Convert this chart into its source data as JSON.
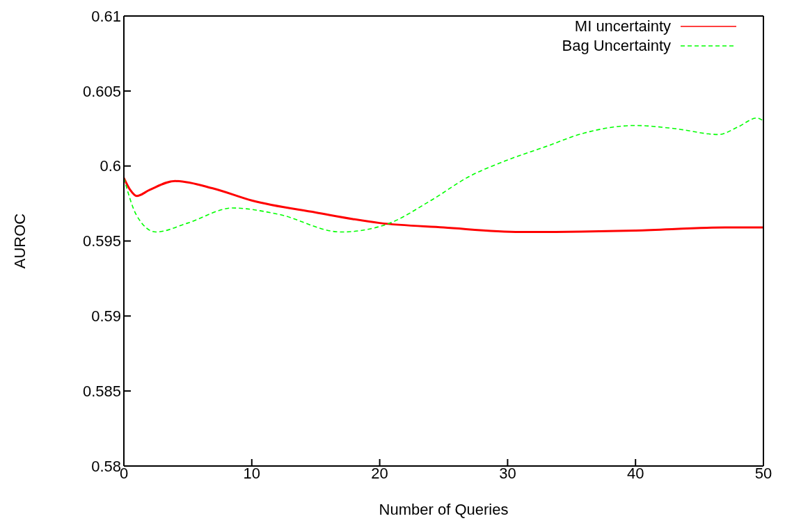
{
  "chart_data": {
    "type": "line",
    "xlabel": "Number of Queries",
    "ylabel": "AUROC",
    "xlim": [
      0,
      50
    ],
    "xticks": [
      0,
      10,
      20,
      30,
      40,
      50
    ],
    "ylim": [
      0.58,
      0.61
    ],
    "yticks": [
      0.58,
      0.585,
      0.59,
      0.595,
      0.6,
      0.605,
      0.61
    ],
    "legend": "top right",
    "marker": "none",
    "series": [
      {
        "name": "MI uncertainty",
        "color": "#ff0000",
        "line_style": "solid",
        "x": [
          0,
          0.5,
          1,
          2,
          4,
          7,
          10,
          15,
          20,
          25,
          31,
          40,
          47,
          50
        ],
        "values": [
          0.5992,
          0.5984,
          0.598,
          0.5984,
          0.599,
          0.5985,
          0.5977,
          0.5969,
          0.5962,
          0.5959,
          0.5956,
          0.5957,
          0.5959,
          0.5959
        ]
      },
      {
        "name": "Bag Uncertainty",
        "color": "#00ff00",
        "line_style": "dashed",
        "x": [
          0,
          1,
          2.5,
          5,
          8.5,
          12,
          17,
          20.5,
          24,
          27,
          30,
          33,
          36,
          40,
          43,
          46.5,
          48,
          49.5,
          50
        ],
        "values": [
          0.5992,
          0.5967,
          0.5956,
          0.5962,
          0.5972,
          0.5968,
          0.5956,
          0.5961,
          0.5977,
          0.5993,
          0.6004,
          0.6013,
          0.6022,
          0.6027,
          0.6025,
          0.6021,
          0.6026,
          0.6032,
          0.603
        ]
      }
    ]
  }
}
